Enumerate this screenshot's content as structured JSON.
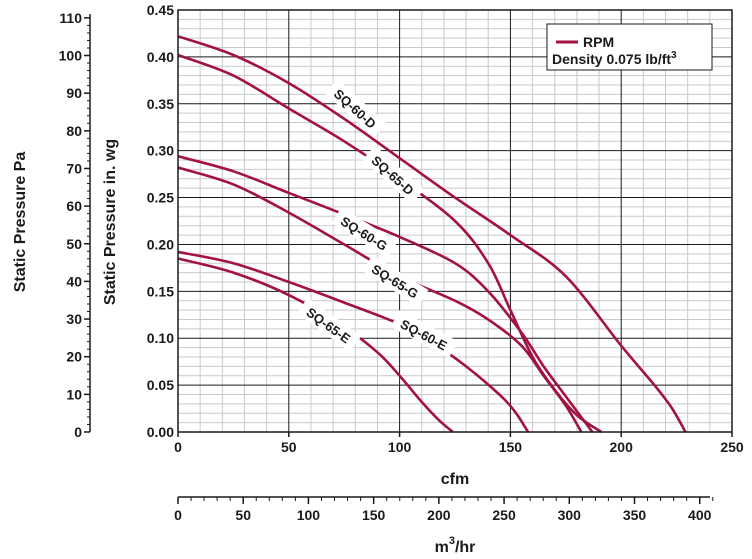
{
  "chart_data": {
    "type": "line",
    "xlabel": "cfm",
    "x2label": "m3/hr",
    "ylabel": "Static Pressure in. wg",
    "y2label": "Static Pressure Pa",
    "xlim": [
      0,
      250
    ],
    "ylim": [
      0,
      0.45
    ],
    "x_ticks": [
      "0",
      "50",
      "100",
      "150",
      "200",
      "250"
    ],
    "y_ticks": [
      "0.00",
      "0.05",
      "0.10",
      "0.15",
      "0.20",
      "0.25",
      "0.30",
      "0.35",
      "0.40",
      "0.45"
    ],
    "x2lim": [
      0,
      424.75
    ],
    "x2_ticks": [
      "0",
      "50",
      "100",
      "150",
      "200",
      "250",
      "300",
      "350",
      "400"
    ],
    "y2lim": [
      0,
      112.09
    ],
    "y2_ticks": [
      "0",
      "10",
      "20",
      "30",
      "40",
      "50",
      "60",
      "70",
      "80",
      "90",
      "100",
      "110"
    ],
    "grid": true,
    "legend": {
      "position": "top-right",
      "entries": [
        "RPM",
        "Density 0.075 lb/ft³"
      ],
      "density_text": "Density 0.075 lb/ft",
      "density_sup": "3"
    },
    "line_color": "#a3133f",
    "series": [
      {
        "name": "SQ-60-D",
        "label_at": [
          80,
          0.345
        ],
        "label_angle": 42,
        "points": [
          [
            0,
            0.422
          ],
          [
            25,
            0.402
          ],
          [
            50,
            0.372
          ],
          [
            75,
            0.334
          ],
          [
            100,
            0.292
          ],
          [
            125,
            0.25
          ],
          [
            150,
            0.21
          ],
          [
            175,
            0.166
          ],
          [
            200,
            0.092
          ],
          [
            215,
            0.05
          ],
          [
            223,
            0.025
          ],
          [
            229,
            0.0
          ]
        ]
      },
      {
        "name": "SQ-65-D",
        "label_at": [
          97,
          0.274
        ],
        "label_angle": 42,
        "points": [
          [
            0,
            0.402
          ],
          [
            25,
            0.38
          ],
          [
            50,
            0.345
          ],
          [
            75,
            0.31
          ],
          [
            100,
            0.27
          ],
          [
            125,
            0.225
          ],
          [
            140,
            0.18
          ],
          [
            150,
            0.13
          ],
          [
            160,
            0.08
          ],
          [
            170,
            0.045
          ],
          [
            180,
            0.018
          ],
          [
            191,
            0.0
          ]
        ]
      },
      {
        "name": "SQ-60-G",
        "label_at": [
          84,
          0.212
        ],
        "label_angle": 32,
        "points": [
          [
            0,
            0.294
          ],
          [
            25,
            0.278
          ],
          [
            50,
            0.255
          ],
          [
            75,
            0.232
          ],
          [
            100,
            0.208
          ],
          [
            125,
            0.18
          ],
          [
            140,
            0.15
          ],
          [
            155,
            0.106
          ],
          [
            165,
            0.07
          ],
          [
            175,
            0.038
          ],
          [
            187,
            0.0
          ]
        ]
      },
      {
        "name": "SQ-65-G",
        "label_at": [
          98,
          0.161
        ],
        "label_angle": 32,
        "points": [
          [
            0,
            0.282
          ],
          [
            25,
            0.264
          ],
          [
            50,
            0.234
          ],
          [
            75,
            0.2
          ],
          [
            100,
            0.166
          ],
          [
            125,
            0.14
          ],
          [
            140,
            0.12
          ],
          [
            155,
            0.092
          ],
          [
            165,
            0.06
          ],
          [
            175,
            0.028
          ],
          [
            182,
            0.0
          ]
        ]
      },
      {
        "name": "SQ-60-E",
        "label_at": [
          111,
          0.104
        ],
        "label_angle": 28,
        "points": [
          [
            0,
            0.192
          ],
          [
            25,
            0.18
          ],
          [
            50,
            0.16
          ],
          [
            75,
            0.138
          ],
          [
            100,
            0.115
          ],
          [
            115,
            0.095
          ],
          [
            130,
            0.07
          ],
          [
            145,
            0.04
          ],
          [
            152,
            0.022
          ],
          [
            158,
            0.0
          ]
        ]
      },
      {
        "name": "SQ-65-E",
        "label_at": [
          68,
          0.114
        ],
        "label_angle": 36,
        "points": [
          [
            0,
            0.185
          ],
          [
            25,
            0.17
          ],
          [
            50,
            0.146
          ],
          [
            75,
            0.112
          ],
          [
            90,
            0.085
          ],
          [
            100,
            0.06
          ],
          [
            110,
            0.032
          ],
          [
            118,
            0.012
          ],
          [
            124,
            0.0
          ]
        ]
      }
    ]
  }
}
